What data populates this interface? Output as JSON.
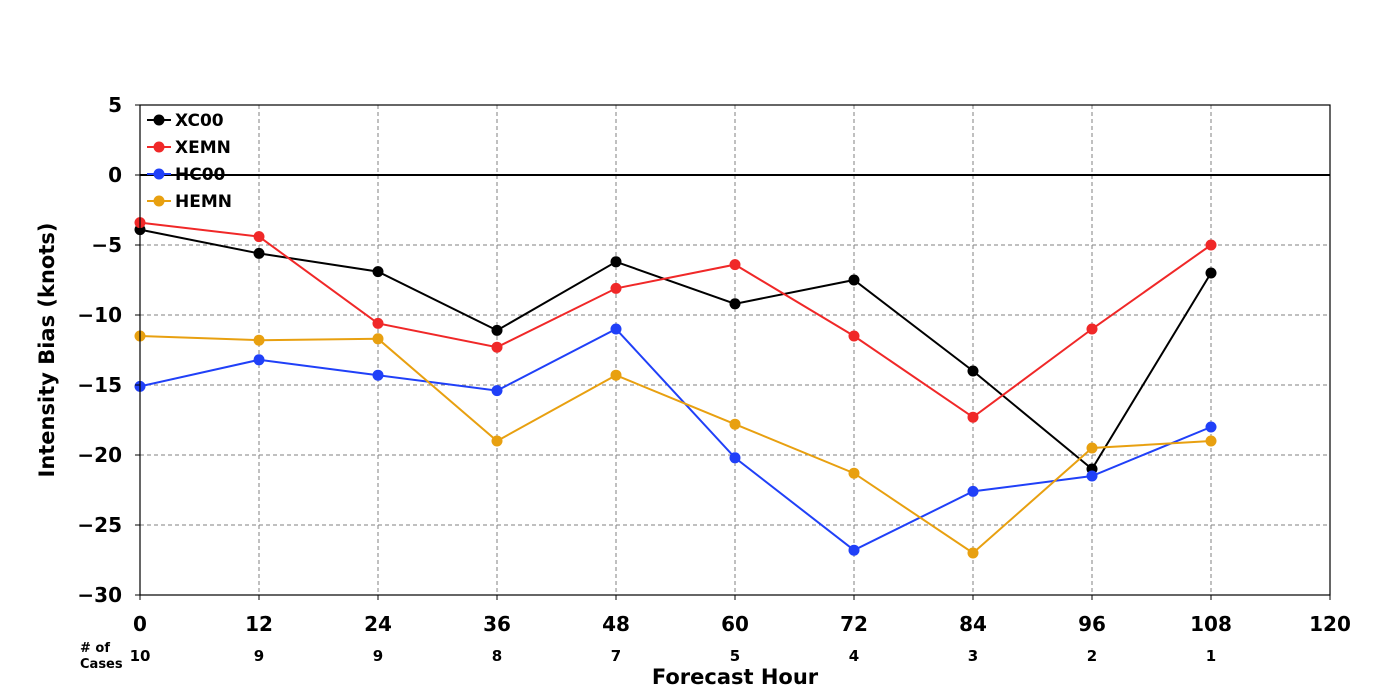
{
  "chart_data": {
    "type": "line",
    "title": "",
    "xlabel": "Forecast Hour",
    "ylabel": "Intensity Bias (knots)",
    "xlim": [
      0,
      120
    ],
    "ylim": [
      -30,
      5
    ],
    "x_ticks": [
      0,
      12,
      24,
      36,
      48,
      60,
      72,
      84,
      96,
      108,
      120
    ],
    "y_ticks": [
      5,
      0,
      -5,
      -10,
      -15,
      -20,
      -25,
      -30
    ],
    "x_tick_labels": [
      "0",
      "12",
      "24",
      "36",
      "48",
      "60",
      "72",
      "84",
      "96",
      "108",
      "120"
    ],
    "y_tick_labels": [
      "5",
      "0",
      "−5",
      "−10",
      "−15",
      "−20",
      "−25",
      "−30"
    ],
    "grid": true,
    "zero_line": true,
    "legend_position": "top-left",
    "cases_title_line1": "# of",
    "cases_title_line2": "Cases",
    "x": [
      0,
      12,
      24,
      36,
      48,
      60,
      72,
      84,
      96,
      108
    ],
    "cases": [
      "10",
      "9",
      "9",
      "8",
      "7",
      "5",
      "4",
      "3",
      "2",
      "1"
    ],
    "series": [
      {
        "name": "XC00",
        "color": "#000000",
        "values": [
          -3.9,
          -5.6,
          -6.9,
          -11.1,
          -6.2,
          -9.2,
          -7.5,
          -14.0,
          -21.0,
          -7.0
        ]
      },
      {
        "name": "XEMN",
        "color": "#f02828",
        "values": [
          -3.4,
          -4.4,
          -10.6,
          -12.3,
          -8.1,
          -6.4,
          -11.5,
          -17.3,
          -11.0,
          -5.0
        ]
      },
      {
        "name": "HC00",
        "color": "#2040f8",
        "values": [
          -15.1,
          -13.2,
          -14.3,
          -15.4,
          -11.0,
          -20.2,
          -26.8,
          -22.6,
          -21.5,
          -18.0
        ]
      },
      {
        "name": "HEMN",
        "color": "#e8a010",
        "values": [
          -11.5,
          -11.8,
          -11.7,
          -19.0,
          -14.3,
          -17.8,
          -21.3,
          -27.0,
          -19.5,
          -19.0
        ]
      }
    ]
  }
}
